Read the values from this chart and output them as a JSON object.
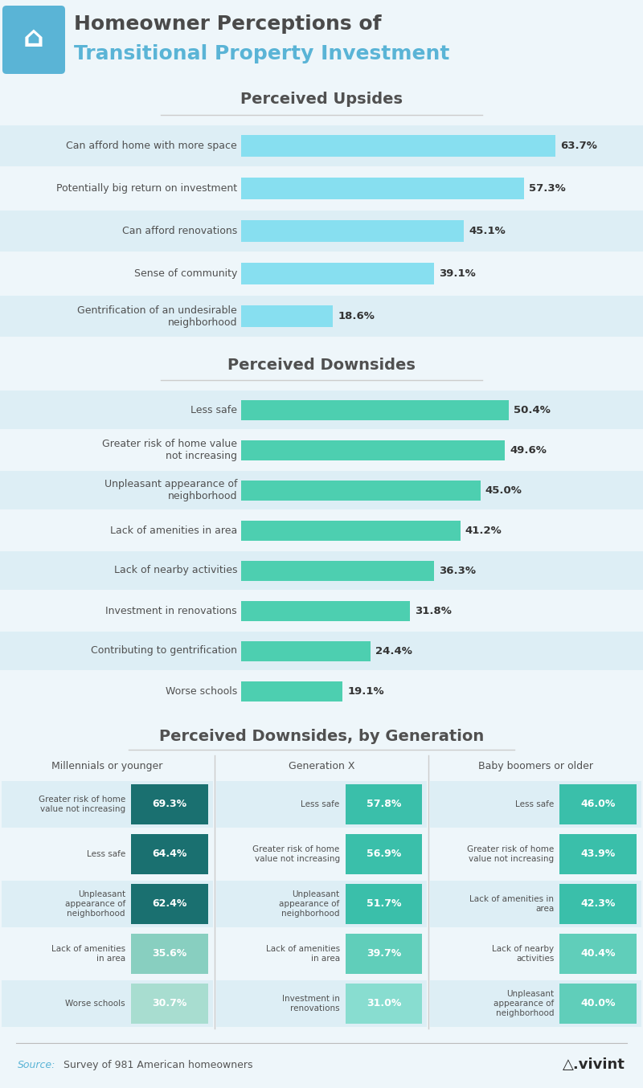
{
  "bg_color": "#eef6fa",
  "header_bg": "#eef6fa",
  "icon_bg": "#5ab4d6",
  "title_line1": "Homeowner Perceptions of",
  "title_line2": "Transitional Property Investment",
  "title_color1": "#4a4a4a",
  "title_color2": "#5ab4d6",
  "upsides_title": "Perceived Upsides",
  "upsides_labels": [
    "Can afford home with more space",
    "Potentially big return on investment",
    "Can afford renovations",
    "Sense of community",
    "Gentrification of an undesirable\nneighborhood"
  ],
  "upsides_values": [
    63.7,
    57.3,
    45.1,
    39.1,
    18.6
  ],
  "upsides_bar_color": "#87dff0",
  "upsides_row_colors": [
    "#ddeef5",
    "#eef6fa"
  ],
  "downsides_title": "Perceived Downsides",
  "downsides_labels": [
    "Less safe",
    "Greater risk of home value\nnot increasing",
    "Unpleasant appearance of\nneighborhood",
    "Lack of amenities in area",
    "Lack of nearby activities",
    "Investment in renovations",
    "Contributing to gentrification",
    "Worse schools"
  ],
  "downsides_values": [
    50.4,
    49.6,
    45.0,
    41.2,
    36.3,
    31.8,
    24.4,
    19.1
  ],
  "downsides_bar_color": "#4dcfb0",
  "downsides_row_colors": [
    "#ddeef5",
    "#eef6fa"
  ],
  "gen_title": "Perceived Downsides, by Generation",
  "gen_col_titles": [
    "Millennials or younger",
    "Generation X",
    "Baby boomers or older"
  ],
  "gen_labels": [
    [
      "Greater risk of home\nvalue not increasing",
      "Less safe",
      "Unpleasant\nappearance of\nneighborhood",
      "Lack of amenities\nin area",
      "Worse schools"
    ],
    [
      "Less safe",
      "Greater risk of home\nvalue not increasing",
      "Unpleasant\nappearance of\nneighborhood",
      "Lack of amenities\nin area",
      "Investment in\nrenovations"
    ],
    [
      "Less safe",
      "Greater risk of home\nvalue not increasing",
      "Lack of amenities in\narea",
      "Lack of nearby\nactivities",
      "Unpleasant\nappearance of\nneighborhood"
    ]
  ],
  "gen_values": [
    [
      69.3,
      64.4,
      62.4,
      35.6,
      30.7
    ],
    [
      57.8,
      56.9,
      51.7,
      39.7,
      31.0
    ],
    [
      46.0,
      43.9,
      42.3,
      40.4,
      40.0
    ]
  ],
  "mil_colors": [
    "#1a7070",
    "#1a7070",
    "#1a7070",
    "#88cfc0",
    "#a8ddd0"
  ],
  "genx_colors": [
    "#3abfaa",
    "#3abfaa",
    "#3abfaa",
    "#60ceba",
    "#88ddd0"
  ],
  "baby_colors": [
    "#3abfaa",
    "#3abfaa",
    "#3abfaa",
    "#60ceba",
    "#60ceba"
  ],
  "source_label": "Source:",
  "source_detail": " Survey of 981 American homeowners",
  "source_color": "#5ab4d6",
  "source_detail_color": "#555555"
}
